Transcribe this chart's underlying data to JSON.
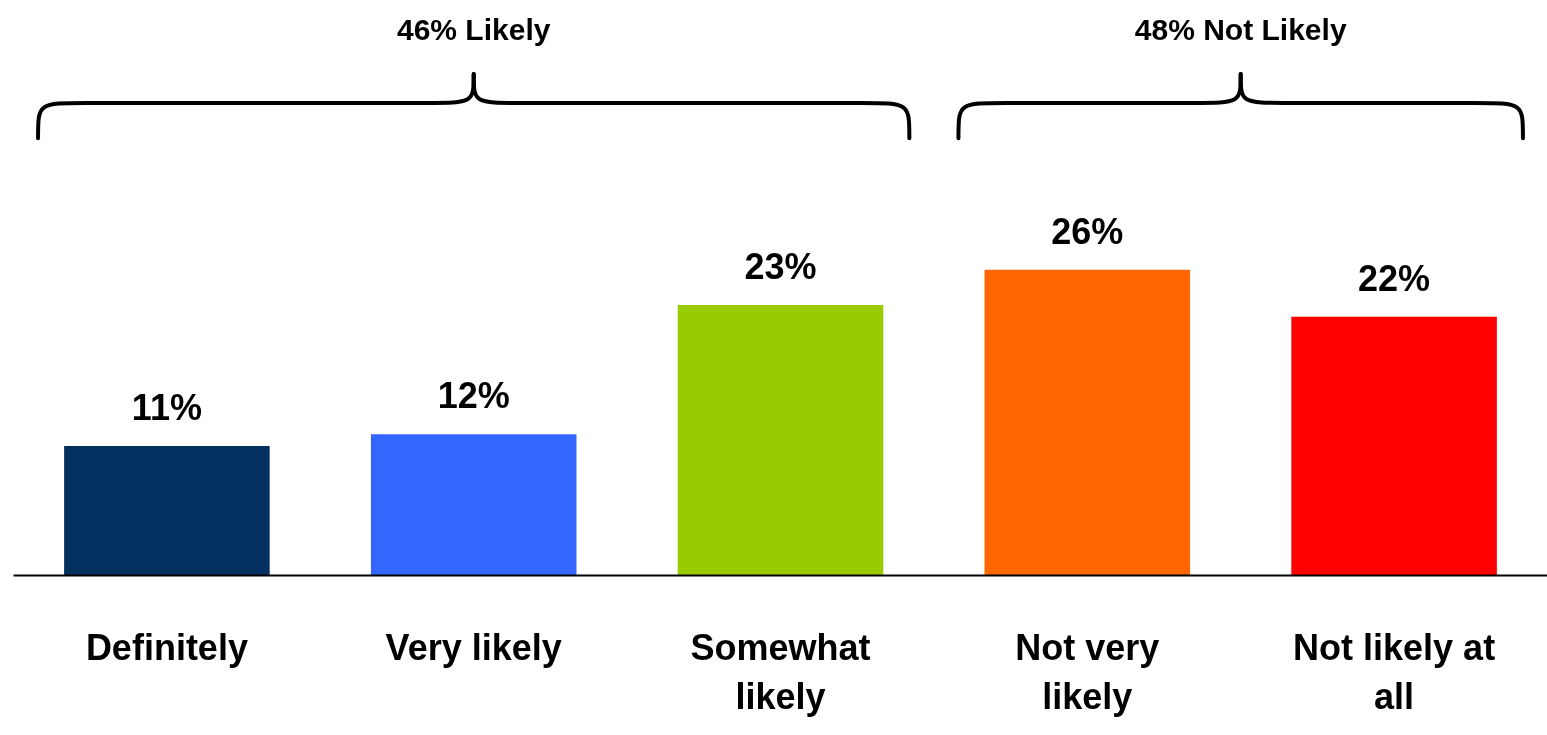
{
  "chart_data": {
    "type": "bar",
    "categories": [
      "Definitely",
      "Very likely",
      "Somewhat likely",
      "Not very likely",
      "Not likely at all"
    ],
    "values": [
      11,
      12,
      23,
      26,
      22
    ],
    "colors": [
      "#04305f",
      "#3366ff",
      "#99cc00",
      "#ff6600",
      "#ff0000"
    ],
    "value_labels": [
      "11%",
      "12%",
      "23%",
      "26%",
      "22%"
    ],
    "annotations": [
      "46% Likely",
      "48% Not Likely"
    ]
  }
}
